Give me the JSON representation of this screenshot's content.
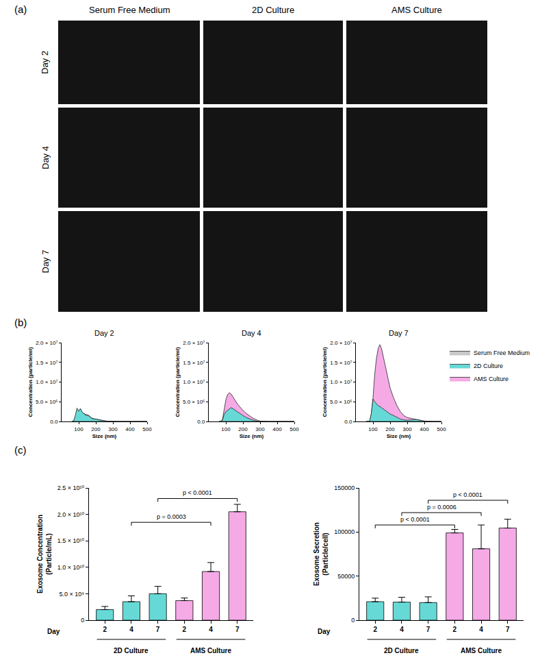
{
  "panel_labels": [
    "(a)",
    "(b)",
    "(c)"
  ],
  "images": {
    "columns": [
      "Serum Free Medium",
      "2D Culture",
      "AMS Culture"
    ],
    "rows": [
      "Day 2",
      "Day 4",
      "Day 7"
    ]
  },
  "chart_data": [
    {
      "type": "area",
      "title": "Day 2",
      "x_label": "Size (nm)",
      "y_label": "Concentration (particle/ml)",
      "x": [
        60,
        70,
        80,
        90,
        100,
        110,
        120,
        130,
        140,
        150,
        160,
        170,
        180,
        190,
        200,
        220,
        240,
        260,
        280,
        300,
        350,
        400,
        450,
        500
      ],
      "series": [
        {
          "name": "Serum Free Medium",
          "color": "#c8c8c8",
          "values": [
            0,
            0,
            0,
            0,
            0,
            0,
            0,
            0,
            0,
            0,
            0,
            0,
            0,
            0,
            0,
            0,
            0,
            0,
            0,
            0,
            0,
            0,
            0,
            0
          ]
        },
        {
          "name": "2D Culture",
          "color": "#66d9d6",
          "values": [
            0,
            100000,
            1500000,
            3400000,
            2600000,
            3300000,
            2400000,
            2000000,
            1600000,
            1500000,
            1400000,
            1000000,
            700000,
            600000,
            600000,
            400000,
            200000,
            100000,
            50000,
            0,
            0,
            0,
            0,
            0
          ]
        },
        {
          "name": "AMS Culture",
          "color": "#f5aae6",
          "values": [
            0,
            100000,
            1200000,
            3000000,
            2500000,
            3200000,
            2300000,
            2000000,
            1800000,
            1700000,
            1500000,
            1100000,
            800000,
            700000,
            600000,
            400000,
            200000,
            100000,
            50000,
            0,
            0,
            0,
            0,
            0
          ]
        }
      ],
      "xlim": [
        0,
        500
      ],
      "xticks": [
        100,
        200,
        300,
        400,
        500
      ],
      "ylim": [
        0,
        20000000
      ],
      "yticks": [
        {
          "value": 0,
          "label": "0.0"
        },
        {
          "value": 5000000,
          "label": "5.0 × 10⁶"
        },
        {
          "value": 10000000,
          "label": "1.0 × 10⁷"
        },
        {
          "value": 15000000,
          "label": "1.5 × 10⁷"
        },
        {
          "value": 20000000,
          "label": "2.0 × 10⁷"
        }
      ]
    },
    {
      "type": "area",
      "title": "Day 4",
      "x_label": "Size (nm)",
      "y_label": "Concentration (particle/ml)",
      "x": [
        60,
        70,
        80,
        90,
        100,
        110,
        120,
        130,
        140,
        150,
        160,
        170,
        180,
        190,
        200,
        220,
        240,
        260,
        280,
        300,
        350,
        400,
        450,
        500
      ],
      "series": [
        {
          "name": "Serum Free Medium",
          "color": "#c8c8c8",
          "values": [
            0,
            0,
            0,
            0,
            0,
            0,
            0,
            0,
            0,
            0,
            0,
            0,
            0,
            0,
            0,
            0,
            0,
            0,
            0,
            0,
            0,
            0,
            0,
            0
          ]
        },
        {
          "name": "2D Culture",
          "color": "#66d9d6",
          "values": [
            0,
            0,
            300000,
            1800000,
            2500000,
            2800000,
            3200000,
            3500000,
            3300000,
            3000000,
            2700000,
            2300000,
            2000000,
            1700000,
            1500000,
            1000000,
            600000,
            300000,
            100000,
            0,
            0,
            0,
            0,
            0
          ]
        },
        {
          "name": "AMS Culture",
          "color": "#f5aae6",
          "values": [
            0,
            0,
            500000,
            3000000,
            5500000,
            6800000,
            7300000,
            7000000,
            6300000,
            5600000,
            4900000,
            4300000,
            3800000,
            3300000,
            2800000,
            2000000,
            1400000,
            800000,
            400000,
            100000,
            0,
            0,
            0,
            0
          ]
        }
      ],
      "xlim": [
        0,
        500
      ],
      "xticks": [
        100,
        200,
        300,
        400,
        500
      ],
      "ylim": [
        0,
        20000000
      ],
      "yticks": [
        {
          "value": 0,
          "label": "0.0"
        },
        {
          "value": 5000000,
          "label": "5.0 × 10⁶"
        },
        {
          "value": 10000000,
          "label": "1.0 × 10⁷"
        },
        {
          "value": 15000000,
          "label": "1.5 × 10⁷"
        },
        {
          "value": 20000000,
          "label": "2.0 × 10⁷"
        }
      ]
    },
    {
      "type": "area",
      "title": "Day 7",
      "x_label": "Size (nm)",
      "y_label": "Concentration (particle/ml)",
      "legend": "right",
      "x": [
        60,
        70,
        80,
        90,
        100,
        110,
        120,
        130,
        140,
        150,
        160,
        170,
        180,
        190,
        200,
        220,
        240,
        260,
        280,
        300,
        350,
        400,
        450,
        500
      ],
      "series": [
        {
          "name": "Serum Free Medium",
          "color": "#c8c8c8",
          "values": [
            0,
            0,
            0,
            0,
            0,
            0,
            0,
            0,
            0,
            0,
            0,
            0,
            0,
            0,
            0,
            0,
            0,
            0,
            0,
            0,
            0,
            0,
            0,
            0
          ]
        },
        {
          "name": "2D Culture",
          "color": "#66d9d6",
          "values": [
            0,
            0,
            0,
            2000000,
            5700000,
            5000000,
            4500000,
            4000000,
            3800000,
            3500000,
            3200000,
            2800000,
            2500000,
            2200000,
            1900000,
            1500000,
            1000000,
            600000,
            400000,
            300000,
            500000,
            100000,
            0,
            0
          ]
        },
        {
          "name": "AMS Culture",
          "color": "#f5aae6",
          "values": [
            0,
            0,
            0,
            2000000,
            6000000,
            12000000,
            16000000,
            18500000,
            19500000,
            18500000,
            16500000,
            14000000,
            12000000,
            10000000,
            8500000,
            6000000,
            4000000,
            2500000,
            1500000,
            1000000,
            500000,
            100000,
            0,
            0
          ]
        }
      ],
      "xlim": [
        0,
        500
      ],
      "xticks": [
        100,
        200,
        300,
        400,
        500
      ],
      "ylim": [
        0,
        20000000
      ],
      "yticks": [
        {
          "value": 0,
          "label": "0.0"
        },
        {
          "value": 5000000,
          "label": "5.0 × 10⁶"
        },
        {
          "value": 10000000,
          "label": "1.0 × 10⁷"
        },
        {
          "value": 15000000,
          "label": "1.5 × 10⁷"
        },
        {
          "value": 20000000,
          "label": "2.0 × 10⁷"
        }
      ]
    },
    {
      "type": "bar",
      "y_label": [
        "Exosome Concentration",
        "(Particle/mL)"
      ],
      "x_label": "Day",
      "categories": [
        "2",
        "4",
        "7",
        "2",
        "4",
        "7"
      ],
      "groups": [
        {
          "label": "2D Culture",
          "from": 0,
          "to": 2
        },
        {
          "label": "AMS Culture",
          "from": 3,
          "to": 5
        }
      ],
      "values": [
        2000000000,
        3500000000,
        5000000000,
        3700000000,
        9200000000,
        20500000000
      ],
      "errors": [
        600000000,
        1100000000,
        1400000000,
        500000000,
        1700000000,
        1400000000
      ],
      "colors": [
        "#66d9d6",
        "#66d9d6",
        "#66d9d6",
        "#f5aae6",
        "#f5aae6",
        "#f5aae6"
      ],
      "ylim": [
        0,
        25000000000
      ],
      "yticks": [
        0,
        {
          "value": 5000000000,
          "label": "5.0 × 10⁹"
        },
        {
          "value": 10000000000,
          "label": "1.0 × 10¹⁰"
        },
        {
          "value": 15000000000,
          "label": "1.5 × 10¹⁰"
        },
        {
          "value": 20000000000,
          "label": "2.0 × 10¹⁰"
        },
        {
          "value": 25000000000,
          "label": "2.5 × 10¹⁰"
        }
      ],
      "annotations": [
        {
          "from": 1,
          "to": 4,
          "y": 18500000000,
          "text": "p = 0.0003"
        },
        {
          "from": 2,
          "to": 5,
          "y": 23000000000,
          "text": "p < 0.0001"
        }
      ]
    },
    {
      "type": "bar",
      "y_label": [
        "Exosome Secretion",
        "(Particle/cell)"
      ],
      "x_label": "Day",
      "categories": [
        "2",
        "4",
        "7",
        "2",
        "4",
        "7"
      ],
      "groups": [
        {
          "label": "2D Culture",
          "from": 0,
          "to": 2
        },
        {
          "label": "AMS Culture",
          "from": 3,
          "to": 5
        }
      ],
      "values": [
        21000,
        20500,
        20000,
        99000,
        81000,
        104500
      ],
      "errors": [
        4000,
        5500,
        6500,
        4000,
        27000,
        10000
      ],
      "colors": [
        "#66d9d6",
        "#66d9d6",
        "#66d9d6",
        "#f5aae6",
        "#f5aae6",
        "#f5aae6"
      ],
      "ylim": [
        0,
        150000
      ],
      "yticks": [
        0,
        50000,
        100000,
        150000
      ],
      "annotations": [
        {
          "from": 0,
          "to": 3,
          "y": 108000,
          "text": "p < 0.0001"
        },
        {
          "from": 1,
          "to": 4,
          "y": 122000,
          "text": "p = 0.0006"
        },
        {
          "from": 2,
          "to": 5,
          "y": 136000,
          "text": "p < 0.0001"
        }
      ]
    }
  ]
}
